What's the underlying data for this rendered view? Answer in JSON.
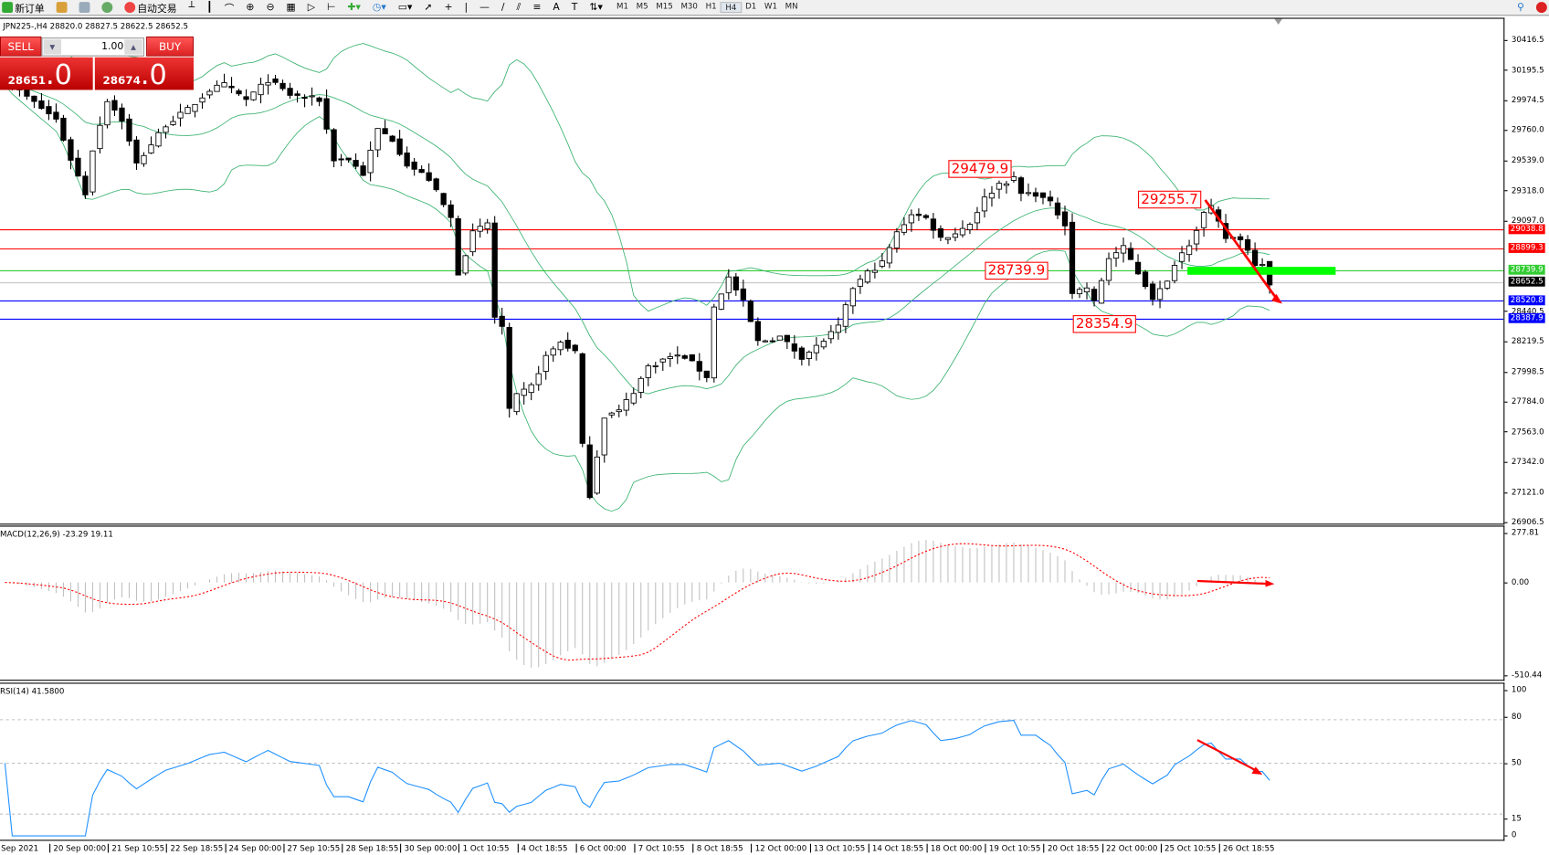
{
  "toolbar": {
    "new_order": "新订单",
    "auto_trading": "自动交易",
    "timeframes": [
      "M1",
      "M5",
      "M15",
      "M30",
      "H1",
      "H4",
      "D1",
      "W1",
      "MN"
    ],
    "active_timeframe": "H4"
  },
  "chart": {
    "header": "JPN225-,H4  28820.0 28827.5 28622.5 28652.5",
    "price_ticks": [
      "30416.5",
      "30195.5",
      "29974.5",
      "29760.0",
      "29539.0",
      "29318.0",
      "29097.0",
      "28440.5",
      "28219.5",
      "27998.5",
      "27784.0",
      "27563.0",
      "27342.0",
      "27121.0",
      "26906.5"
    ],
    "price_min": 26906.5,
    "price_max": 30416.5,
    "levels": [
      {
        "price": 29038.8,
        "label": "29038.8",
        "color": "#ff0000"
      },
      {
        "price": 28899.3,
        "label": "28899.3",
        "color": "#ff0000"
      },
      {
        "price": 28739.9,
        "label": "28739.9",
        "color": "#32cd32"
      },
      {
        "price": 28652.5,
        "label": "28652.5",
        "color": "#000000",
        "line": "#c0c0c0"
      },
      {
        "price": 28520.8,
        "label": "28520.8",
        "color": "#0000ff"
      },
      {
        "price": 28387.9,
        "label": "28387.9",
        "color": "#0000ff"
      }
    ],
    "annotations": [
      "29479.9",
      "29255.7",
      "28739.9",
      "28354.9"
    ],
    "close_keypoints": [
      [
        0,
        30129
      ],
      [
        7,
        29841
      ],
      [
        9,
        29553
      ],
      [
        11,
        29302
      ],
      [
        12,
        29625
      ],
      [
        14,
        29985
      ],
      [
        16,
        29841
      ],
      [
        18,
        29517
      ],
      [
        20,
        29661
      ],
      [
        22,
        29805
      ],
      [
        25,
        29913
      ],
      [
        28,
        30057
      ],
      [
        30,
        30093
      ],
      [
        33,
        29985
      ],
      [
        36,
        30129
      ],
      [
        39,
        30021
      ],
      [
        43,
        29985
      ],
      [
        45,
        29553
      ],
      [
        47,
        29553
      ],
      [
        49,
        29445
      ],
      [
        51,
        29769
      ],
      [
        53,
        29697
      ],
      [
        55,
        29517
      ],
      [
        58,
        29409
      ],
      [
        61,
        29122
      ],
      [
        62,
        28726
      ],
      [
        64,
        29014
      ],
      [
        66,
        29086
      ],
      [
        67,
        28402
      ],
      [
        68,
        28330
      ],
      [
        69,
        27719
      ],
      [
        70,
        27827
      ],
      [
        72,
        27899
      ],
      [
        74,
        28115
      ],
      [
        76,
        28223
      ],
      [
        78,
        28151
      ],
      [
        79,
        27467
      ],
      [
        80,
        27108
      ],
      [
        81,
        27396
      ],
      [
        82,
        27683
      ],
      [
        84,
        27719
      ],
      [
        86,
        27863
      ],
      [
        88,
        28043
      ],
      [
        91,
        28115
      ],
      [
        93,
        28115
      ],
      [
        96,
        27971
      ],
      [
        97,
        28474
      ],
      [
        99,
        28690
      ],
      [
        101,
        28510
      ],
      [
        103,
        28223
      ],
      [
        106,
        28259
      ],
      [
        109,
        28115
      ],
      [
        111,
        28187
      ],
      [
        114,
        28330
      ],
      [
        116,
        28618
      ],
      [
        118,
        28726
      ],
      [
        120,
        28798
      ],
      [
        122,
        29014
      ],
      [
        124,
        29158
      ],
      [
        126,
        29122
      ],
      [
        128,
        28978
      ],
      [
        130,
        29014
      ],
      [
        132,
        29086
      ],
      [
        134,
        29266
      ],
      [
        136,
        29374
      ],
      [
        138,
        29409
      ],
      [
        139,
        29302
      ],
      [
        141,
        29302
      ],
      [
        143,
        29230
      ],
      [
        145,
        29086
      ],
      [
        146,
        28582
      ],
      [
        148,
        28618
      ],
      [
        149,
        28510
      ],
      [
        151,
        28834
      ],
      [
        153,
        28906
      ],
      [
        155,
        28726
      ],
      [
        157,
        28546
      ],
      [
        159,
        28654
      ],
      [
        160,
        28798
      ],
      [
        162,
        28942
      ],
      [
        164,
        29158
      ],
      [
        165,
        29194
      ],
      [
        167,
        28978
      ],
      [
        169,
        28978
      ],
      [
        171,
        28798
      ],
      [
        172,
        28798
      ],
      [
        173,
        28652
      ]
    ]
  },
  "one_click": {
    "sell": "SELL",
    "buy": "BUY",
    "lot": "1.00",
    "sell_small": "28651",
    "sell_big": ".0",
    "buy_small": "28674",
    "buy_big": ".0"
  },
  "macd": {
    "label": "MACD(12,26,9) -23.29 19.11",
    "ticks": [
      "277.81",
      "0.00",
      "-510.44"
    ],
    "max": 277.81,
    "min": -510.44,
    "signal_color": "#ff0000",
    "hist_color": "#c0c0c0"
  },
  "rsi": {
    "label": "RSI(14) 41.5800",
    "ticks": [
      "100",
      "80",
      "50",
      "15",
      "0"
    ],
    "color": "#1e90ff"
  },
  "time_axis": [
    "Sep 2021",
    "20 Sep 00:00",
    "21 Sep 10:55",
    "22 Sep 18:55",
    "24 Sep 00:00",
    "27 Sep 10:55",
    "28 Sep 18:55",
    "30 Sep 00:00",
    "1 Oct 10:55",
    "4 Oct 18:55",
    "6 Oct 00:00",
    "7 Oct 10:55",
    "8 Oct 18:55",
    "12 Oct 00:00",
    "13 Oct 10:55",
    "14 Oct 18:55",
    "18 Oct 00:00",
    "19 Oct 10:55",
    "20 Oct 18:55",
    "22 Oct 00:00",
    "25 Oct 10:55",
    "26 Oct 18:55"
  ]
}
